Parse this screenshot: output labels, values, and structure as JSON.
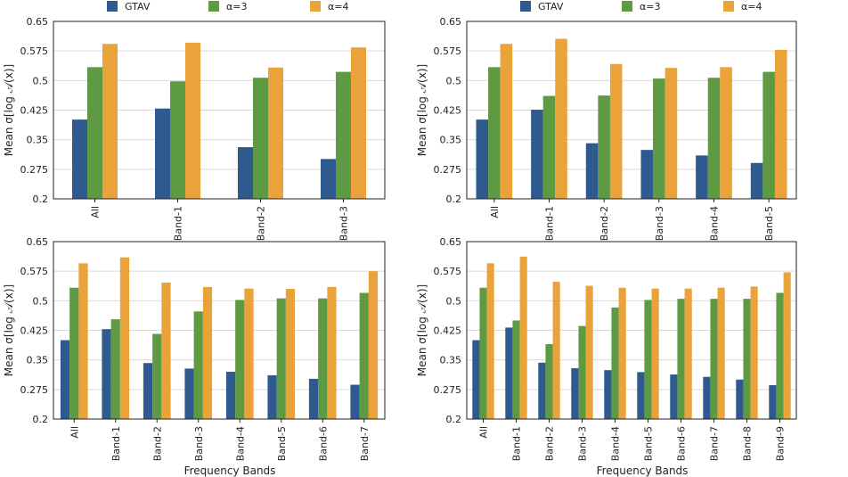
{
  "colors": {
    "GTAV": "#2f5a8f",
    "a3": "#5e9a42",
    "a4": "#eaa23a",
    "grid": "#d9d9d9",
    "axis": "#222222"
  },
  "legend_groups": [
    {
      "items": [
        {
          "label": "GTAV",
          "color_key": "GTAV"
        },
        {
          "label": "α=3",
          "color_key": "a3"
        },
        {
          "label": "α=4",
          "color_key": "a4"
        }
      ]
    },
    {
      "items": [
        {
          "label": "GTAV",
          "color_key": "GTAV"
        },
        {
          "label": "α=3",
          "color_key": "a3"
        },
        {
          "label": "α=4",
          "color_key": "a4"
        }
      ]
    }
  ],
  "chart_data": [
    {
      "type": "bar",
      "title": "",
      "xlabel": "",
      "ylabel": "Mean σ[log 𝒜(x)]",
      "ylim": [
        0.2,
        0.65
      ],
      "yticks": [
        "0.2",
        "0.275",
        "0.35",
        "0.425",
        "0.5",
        "0.575",
        "0.65"
      ],
      "yticks_values": [
        0.2,
        0.275,
        0.35,
        0.425,
        0.5,
        0.575,
        0.65
      ],
      "categories": [
        "All",
        "Band-1",
        "Band-2",
        "Band-3"
      ],
      "series": [
        {
          "name": "GTAV",
          "values": [
            0.401,
            0.429,
            0.331,
            0.301
          ]
        },
        {
          "name": "α=3",
          "values": [
            0.534,
            0.498,
            0.507,
            0.522
          ]
        },
        {
          "name": "α=4",
          "values": [
            0.593,
            0.596,
            0.533,
            0.584
          ]
        }
      ]
    },
    {
      "type": "bar",
      "title": "",
      "xlabel": "",
      "ylabel": "Mean σ[log 𝒜(x)]",
      "ylim": [
        0.2,
        0.65
      ],
      "yticks": [
        "0.2",
        "0.275",
        "0.35",
        "0.425",
        "0.5",
        "0.575",
        "0.65"
      ],
      "yticks_values": [
        0.2,
        0.275,
        0.35,
        0.425,
        0.5,
        0.575,
        0.65
      ],
      "categories": [
        "All",
        "Band-1",
        "Band-2",
        "Band-3",
        "Band-4",
        "Band-5"
      ],
      "series": [
        {
          "name": "GTAV",
          "values": [
            0.401,
            0.426,
            0.341,
            0.324,
            0.31,
            0.291
          ]
        },
        {
          "name": "α=3",
          "values": [
            0.534,
            0.461,
            0.462,
            0.505,
            0.507,
            0.522
          ]
        },
        {
          "name": "α=4",
          "values": [
            0.593,
            0.606,
            0.542,
            0.532,
            0.534,
            0.578
          ]
        }
      ]
    },
    {
      "type": "bar",
      "title": "",
      "xlabel": "Frequency Bands",
      "ylabel": "Mean σ[log 𝒜(x)]",
      "ylim": [
        0.2,
        0.65
      ],
      "yticks": [
        "0.2",
        "0.275",
        "0.35",
        "0.425",
        "0.5",
        "0.575",
        "0.65"
      ],
      "yticks_values": [
        0.2,
        0.275,
        0.35,
        0.425,
        0.5,
        0.575,
        0.65
      ],
      "categories": [
        "All",
        "Band-1",
        "Band-2",
        "Band-3",
        "Band-4",
        "Band-5",
        "Band-6",
        "Band-7"
      ],
      "series": [
        {
          "name": "GTAV",
          "values": [
            0.4,
            0.428,
            0.342,
            0.328,
            0.32,
            0.311,
            0.302,
            0.287
          ]
        },
        {
          "name": "α=3",
          "values": [
            0.533,
            0.453,
            0.416,
            0.473,
            0.502,
            0.506,
            0.506,
            0.52
          ]
        },
        {
          "name": "α=4",
          "values": [
            0.595,
            0.61,
            0.546,
            0.535,
            0.531,
            0.53,
            0.535,
            0.575
          ]
        }
      ]
    },
    {
      "type": "bar",
      "title": "",
      "xlabel": "Frequency Bands",
      "ylabel": "Mean σ[log 𝒜(x)]",
      "ylim": [
        0.2,
        0.65
      ],
      "yticks": [
        "0.2",
        "0.275",
        "0.35",
        "0.425",
        "0.5",
        "0.575",
        "0.65"
      ],
      "yticks_values": [
        0.2,
        0.275,
        0.35,
        0.425,
        0.5,
        0.575,
        0.65
      ],
      "categories": [
        "All",
        "Band-1",
        "Band-2",
        "Band-3",
        "Band-4",
        "Band-5",
        "Band-6",
        "Band-7",
        "Band-8",
        "Band-9"
      ],
      "series": [
        {
          "name": "GTAV",
          "values": [
            0.4,
            0.432,
            0.343,
            0.329,
            0.324,
            0.319,
            0.313,
            0.307,
            0.3,
            0.286
          ]
        },
        {
          "name": "α=3",
          "values": [
            0.533,
            0.45,
            0.39,
            0.436,
            0.483,
            0.502,
            0.505,
            0.505,
            0.505,
            0.52
          ]
        },
        {
          "name": "α=4",
          "values": [
            0.595,
            0.612,
            0.548,
            0.538,
            0.533,
            0.531,
            0.531,
            0.533,
            0.536,
            0.572
          ]
        }
      ]
    }
  ]
}
